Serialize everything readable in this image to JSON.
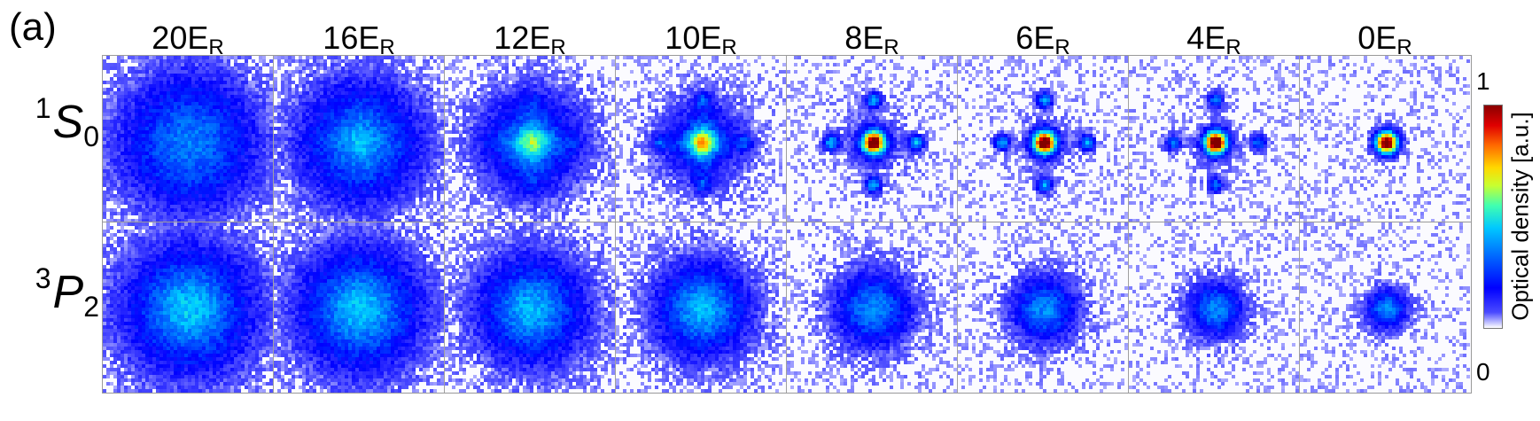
{
  "panel_label": "(a)",
  "columns": [
    {
      "value": "20",
      "base": "E",
      "sub": "R"
    },
    {
      "value": "16",
      "base": "E",
      "sub": "R"
    },
    {
      "value": "12",
      "base": "E",
      "sub": "R"
    },
    {
      "value": "10",
      "base": "E",
      "sub": "R"
    },
    {
      "value": "8",
      "base": "E",
      "sub": "R"
    },
    {
      "value": "6",
      "base": "E",
      "sub": "R"
    },
    {
      "value": "4",
      "base": "E",
      "sub": "R"
    },
    {
      "value": "0",
      "base": "E",
      "sub": "R"
    }
  ],
  "rows": [
    {
      "sup": "1",
      "base": "S",
      "sub": "0"
    },
    {
      "sup": "3",
      "base": "P",
      "sub": "2"
    }
  ],
  "colorbar": {
    "label": "Optical density [a.u.]",
    "max": "1",
    "min": "0",
    "colors": [
      "#ffffff",
      "#0000ff",
      "#00c8ff",
      "#c8ff30",
      "#ffd800",
      "#e00000",
      "#8a0000"
    ]
  }
}
